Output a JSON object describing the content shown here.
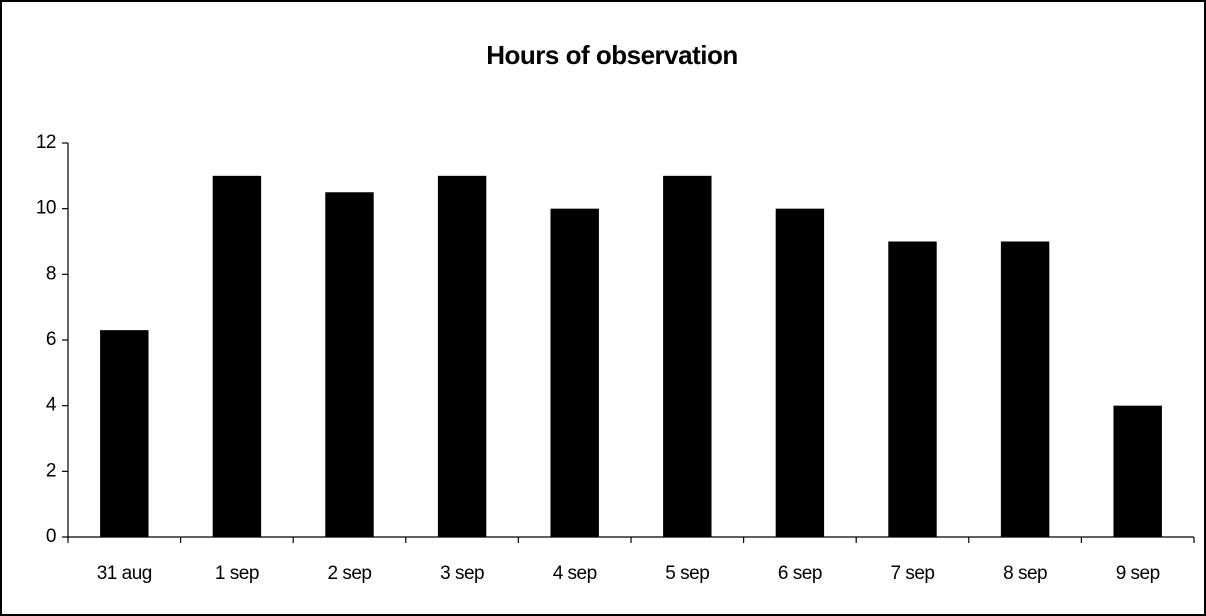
{
  "chart_data": {
    "type": "bar",
    "title": "Hours of observation",
    "categories": [
      "31 aug",
      "1 sep",
      "2 sep",
      "3 sep",
      "4 sep",
      "5 sep",
      "6 sep",
      "7 sep",
      "8 sep",
      "9 sep"
    ],
    "values": [
      6.3,
      11,
      10.5,
      11,
      10,
      11,
      10,
      9,
      9,
      4
    ],
    "color": "#000000",
    "ylim": [
      0,
      12
    ],
    "yticks": [
      0,
      2,
      4,
      6,
      8,
      10,
      12
    ],
    "grid": false
  }
}
